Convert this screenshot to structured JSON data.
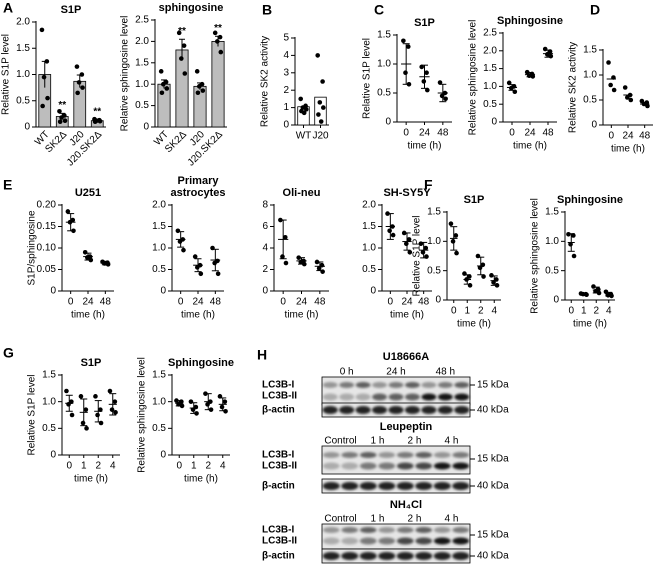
{
  "chart_data": [
    {
      "type": "bar",
      "panel": "A",
      "title": "S1P",
      "ylabel": "Relative S1P level",
      "categories": [
        "WT",
        "SK2Δ",
        "J20",
        "J20.SK2Δ"
      ],
      "values": [
        1.0,
        0.2,
        0.87,
        0.12
      ],
      "errors": [
        0.25,
        0.06,
        0.12,
        0.02
      ],
      "points": [
        [
          1.85,
          1.25,
          0.95,
          0.55,
          0.4
        ],
        [
          0.3,
          0.22,
          0.18,
          0.12,
          0.1
        ],
        [
          1.15,
          1.0,
          0.85,
          0.75,
          0.65
        ],
        [
          0.15,
          0.13,
          0.12,
          0.11,
          0.1
        ]
      ],
      "annotations": [
        null,
        "**",
        null,
        "**"
      ],
      "color": "#bdbdbd",
      "ylim": [
        0,
        2
      ],
      "yticks": [
        0,
        0.5,
        {
          "value": 1,
          "label": "1.0"
        },
        1.5,
        {
          "value": 2,
          "label": "2.0"
        }
      ]
    },
    {
      "type": "bar",
      "title": "sphingosine",
      "ylabel": "Relative sphingosine level",
      "categories": [
        "WT",
        "SK2Δ",
        "J20",
        "J20.SK2Δ"
      ],
      "values": [
        1.0,
        1.8,
        0.95,
        2.0
      ],
      "errors": [
        0.1,
        0.25,
        0.08,
        0.12
      ],
      "points": [
        [
          1.3,
          1.05,
          1.0,
          0.9,
          0.8
        ],
        [
          2.2,
          1.9,
          1.6,
          1.25
        ],
        [
          1.3,
          1.0,
          0.95,
          0.85,
          0.8
        ],
        [
          2.2,
          2.1,
          2.0,
          1.75
        ]
      ],
      "annotations": [
        null,
        "**",
        null,
        "**"
      ],
      "color": "#bdbdbd",
      "ylim": [
        0,
        2.5
      ],
      "yticks": [
        0,
        0.5,
        {
          "value": 1,
          "label": "1.0"
        },
        1.5,
        {
          "value": 2,
          "label": "2.0"
        },
        2.5
      ]
    },
    {
      "type": "bar",
      "panel": "B",
      "ylabel": "Relative SK2 activity",
      "categories": [
        "WT",
        "J20"
      ],
      "values": [
        1.05,
        1.6
      ],
      "points": [
        [
          1.5,
          1.1,
          1.0,
          0.9,
          0.8,
          0.7
        ],
        [
          4.0,
          2.5,
          1.3,
          1.0,
          0.6,
          0.2
        ]
      ],
      "color": "#ffffff",
      "ylim": [
        0,
        5
      ],
      "yticks": [
        0,
        1,
        2,
        3,
        4,
        5
      ]
    },
    {
      "type": "dot",
      "panel": "C",
      "title": "S1P",
      "ylabel": "Relative S1P level",
      "xlabel": "time (h)",
      "categories": [
        "0",
        "24",
        "48"
      ],
      "values": [
        1.0,
        0.78,
        0.5
      ],
      "errors": [
        0.35,
        0.2,
        0.15
      ],
      "points": [
        [
          1.4,
          1.3,
          0.85,
          0.65
        ],
        [
          0.95,
          0.85,
          0.7,
          0.55
        ],
        [
          0.68,
          0.5,
          0.45,
          0.4
        ]
      ],
      "ylim": [
        0,
        1.5
      ],
      "yticks": [
        0,
        0.5,
        {
          "value": 1,
          "label": "1.0"
        },
        1.5
      ]
    },
    {
      "type": "dot",
      "title": "Sphingosine",
      "ylabel": "Relative sphingosine level",
      "xlabel": "time (h)",
      "categories": [
        "0",
        "24",
        "48"
      ],
      "values": [
        0.97,
        1.33,
        1.92
      ],
      "errors": [
        0.08,
        0.06,
        0.1
      ],
      "points": [
        [
          1.1,
          1.0,
          0.95,
          0.85
        ],
        [
          1.4,
          1.35,
          1.3,
          1.28
        ],
        [
          2.05,
          1.98,
          1.9,
          1.85
        ]
      ],
      "ylim": [
        0,
        2.5
      ],
      "yticks": [
        0,
        0.5,
        {
          "value": 1,
          "label": "1.0"
        },
        1.5,
        {
          "value": 2,
          "label": "2.0"
        },
        2.5
      ]
    },
    {
      "type": "dot",
      "panel": "D",
      "ylabel": "Relative SK2 activity",
      "xlabel": "time (h)",
      "categories": [
        "0",
        "24",
        "48"
      ],
      "values": [
        0.92,
        0.6,
        0.42
      ],
      "points": [
        [
          1.25,
          0.95,
          0.8,
          0.7
        ],
        [
          0.75,
          0.6,
          0.55,
          0.5
        ],
        [
          0.48,
          0.45,
          0.42,
          0.38
        ]
      ],
      "ylim": [
        0,
        1.5
      ],
      "yticks": [
        0,
        0.5,
        {
          "value": 1,
          "label": "1.0"
        },
        1.5
      ]
    },
    {
      "type": "dot",
      "panel": "E",
      "title": "U251",
      "ylabel": "S1P/sphingosine",
      "xlabel": "time (h)",
      "categories": [
        "0",
        "24",
        "48"
      ],
      "values": [
        0.16,
        0.08,
        0.065
      ],
      "errors": [
        0.02,
        0.008,
        0.004
      ],
      "points": [
        [
          0.185,
          0.165,
          0.16,
          0.14
        ],
        [
          0.09,
          0.08,
          0.078,
          0.072
        ],
        [
          0.068,
          0.066,
          0.064,
          0.062
        ]
      ],
      "ylim": [
        0,
        0.2
      ],
      "yticks": [
        0,
        0.05,
        {
          "value": 0.1,
          "label": "0.10"
        },
        0.15,
        {
          "value": 0.2,
          "label": "0.20"
        }
      ]
    },
    {
      "type": "dot",
      "title": [
        "Primary",
        "astrocytes"
      ],
      "xlabel": "time (h)",
      "categories": [
        "0",
        "24",
        "48"
      ],
      "values": [
        1.2,
        0.6,
        0.72
      ],
      "errors": [
        0.18,
        0.15,
        0.25
      ],
      "points": [
        [
          1.4,
          1.2,
          1.15,
          0.95
        ],
        [
          0.8,
          0.6,
          0.55,
          0.4
        ],
        [
          1.0,
          0.7,
          0.65,
          0.4
        ]
      ],
      "ylim": [
        0,
        2
      ],
      "yticks": [
        0,
        0.5,
        {
          "value": 1,
          "label": "1.0"
        },
        1.5,
        {
          "value": 2,
          "label": "2.0"
        }
      ]
    },
    {
      "type": "dot",
      "title": "Oli-neu",
      "xlabel": "time (h)",
      "categories": [
        "0",
        "24",
        "48"
      ],
      "values": [
        4.8,
        2.8,
        2.3
      ],
      "errors": [
        1.8,
        0.3,
        0.4
      ],
      "points": [
        [
          6.6,
          5.0,
          3.2,
          2.6
        ],
        [
          3.1,
          2.8,
          2.7,
          2.5
        ],
        [
          2.7,
          2.4,
          2.1,
          1.8
        ]
      ],
      "ylim": [
        0,
        8
      ],
      "yticks": [
        0,
        2,
        4,
        6,
        8
      ]
    },
    {
      "type": "dot",
      "title": "SH-SY5Y",
      "xlabel": "time (h)",
      "categories": [
        "0",
        "24",
        "48"
      ],
      "values": [
        1.5,
        1.15,
        0.95
      ],
      "errors": [
        0.3,
        0.2,
        0.18
      ],
      "points": [
        [
          1.8,
          1.5,
          1.4,
          1.3
        ],
        [
          1.35,
          1.2,
          1.1,
          0.9
        ],
        [
          1.1,
          1.0,
          0.9,
          0.8
        ]
      ],
      "ylim": [
        0,
        2
      ],
      "yticks": [
        0,
        0.5,
        {
          "value": 1,
          "label": "1.0"
        },
        1.5,
        {
          "value": 2,
          "label": "2.0"
        }
      ]
    },
    {
      "type": "dot",
      "panel": "F",
      "title": "S1P",
      "ylabel": "Relative S1P level",
      "xlabel": "time (h)",
      "categories": [
        "0",
        "1",
        "2",
        "4"
      ],
      "values": [
        1.05,
        0.35,
        0.58,
        0.33
      ],
      "errors": [
        0.2,
        0.08,
        0.15,
        0.08
      ],
      "points": [
        [
          1.3,
          1.1,
          1.0,
          0.8
        ],
        [
          0.45,
          0.4,
          0.35,
          0.25
        ],
        [
          0.75,
          0.6,
          0.55,
          0.4
        ],
        [
          0.42,
          0.35,
          0.3,
          0.25
        ]
      ],
      "ylim": [
        0,
        1.5
      ],
      "yticks": [
        0,
        0.5,
        {
          "value": 1,
          "label": "1.0"
        },
        1.5
      ]
    },
    {
      "type": "dot",
      "title": "Sphingosine",
      "ylabel": "Relative sphingosine level",
      "xlabel": "time (h)",
      "categories": [
        "0",
        "1",
        "2",
        "4"
      ],
      "values": [
        0.98,
        0.1,
        0.17,
        0.1
      ],
      "errors": [
        0.15,
        0.01,
        0.05,
        0.03
      ],
      "points": [
        [
          1.12,
          1.1,
          0.95,
          0.75
        ],
        [
          0.11,
          0.1,
          0.1,
          0.09
        ],
        [
          0.23,
          0.18,
          0.15,
          0.12
        ],
        [
          0.14,
          0.1,
          0.08,
          0.07
        ]
      ],
      "ylim": [
        0,
        1.5
      ],
      "yticks": [
        0,
        0.5,
        {
          "value": 1,
          "label": "1.0"
        },
        1.5
      ]
    },
    {
      "type": "dot",
      "panel": "G",
      "title": "S1P",
      "ylabel": "Relative S1P level",
      "xlabel": "time (h)",
      "categories": [
        "0",
        "1",
        "2",
        "4"
      ],
      "values": [
        0.97,
        0.8,
        0.82,
        0.95
      ],
      "errors": [
        0.15,
        0.25,
        0.2,
        0.2
      ],
      "points": [
        [
          1.2,
          1.0,
          0.95,
          0.75
        ],
        [
          1.1,
          0.85,
          0.6,
          0.5
        ],
        [
          1.1,
          0.85,
          0.75,
          0.6
        ],
        [
          1.2,
          1.0,
          0.85,
          0.8
        ]
      ],
      "ylim": [
        0,
        1.5
      ],
      "yticks": [
        0,
        0.5,
        {
          "value": 1,
          "label": "1.0"
        },
        1.5
      ]
    },
    {
      "type": "dot",
      "title": "Sphingosine",
      "ylabel": "Relative sphingosine level",
      "xlabel": "time (h)",
      "categories": [
        "0",
        "1",
        "2",
        "4"
      ],
      "values": [
        0.97,
        0.88,
        1.0,
        0.95
      ],
      "errors": [
        0.05,
        0.1,
        0.15,
        0.12
      ],
      "points": [
        [
          1.02,
          1.0,
          0.95,
          0.92
        ],
        [
          1.0,
          0.9,
          0.85,
          0.78
        ],
        [
          1.15,
          1.0,
          0.95,
          0.85
        ],
        [
          1.1,
          1.0,
          0.9,
          0.82
        ]
      ],
      "ylim": [
        0,
        1.5
      ],
      "yticks": [
        0,
        0.5,
        {
          "value": 1,
          "label": "1.0"
        },
        1.5
      ]
    }
  ],
  "blots": {
    "panel": "H",
    "items": [
      {
        "title": "U18666A",
        "lanes": [
          "0 h",
          "24 h",
          "48 h"
        ],
        "rows": [
          "LC3B-I",
          "LC3B-II",
          "β-actin"
        ],
        "markers": [
          "15 kDa",
          "40 kDa"
        ]
      },
      {
        "title": "Leupeptin",
        "lanes": [
          "Control",
          "1 h",
          "2 h",
          "4 h"
        ],
        "rows": [
          "LC3B-I",
          "LC3B-II",
          "β-actin"
        ],
        "markers": [
          "15 kDa",
          "40 kDa"
        ]
      },
      {
        "title": "NH₄Cl",
        "lanes": [
          "Control",
          "1 h",
          "2 h",
          "4 h"
        ],
        "rows": [
          "LC3B-I",
          "LC3B-II",
          "β-actin"
        ],
        "markers": [
          "15 kDa",
          "40 kDa"
        ]
      }
    ]
  }
}
